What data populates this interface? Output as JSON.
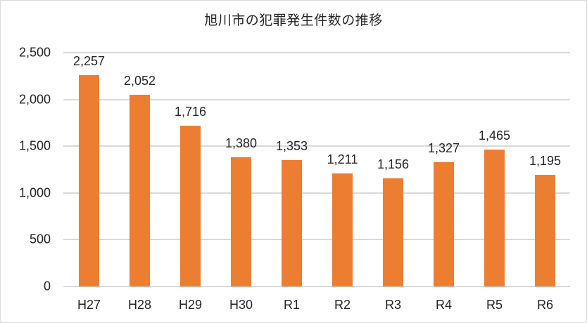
{
  "chart_data": {
    "type": "bar",
    "title": "旭川市の犯罪発生件数の推移",
    "xlabel": "",
    "ylabel": "",
    "categories": [
      "H27",
      "H28",
      "H29",
      "H30",
      "R1",
      "R2",
      "R3",
      "R4",
      "R5",
      "R6"
    ],
    "values": [
      2257,
      2052,
      1716,
      1380,
      1353,
      1211,
      1156,
      1327,
      1465,
      1195
    ],
    "value_labels": [
      "2,257",
      "2,052",
      "1,716",
      "1,380",
      "1,353",
      "1,211",
      "1,156",
      "1,327",
      "1,465",
      "1,195"
    ],
    "ylim": [
      0,
      2500
    ],
    "yticks": [
      0,
      500,
      1000,
      1500,
      2000,
      2500
    ],
    "ytick_labels": [
      "0",
      "500",
      "1,000",
      "1,500",
      "2,000",
      "2,500"
    ],
    "grid": true,
    "legend": null,
    "bar_color": "#ED7D31",
    "grid_color": "#D9D9D9"
  }
}
